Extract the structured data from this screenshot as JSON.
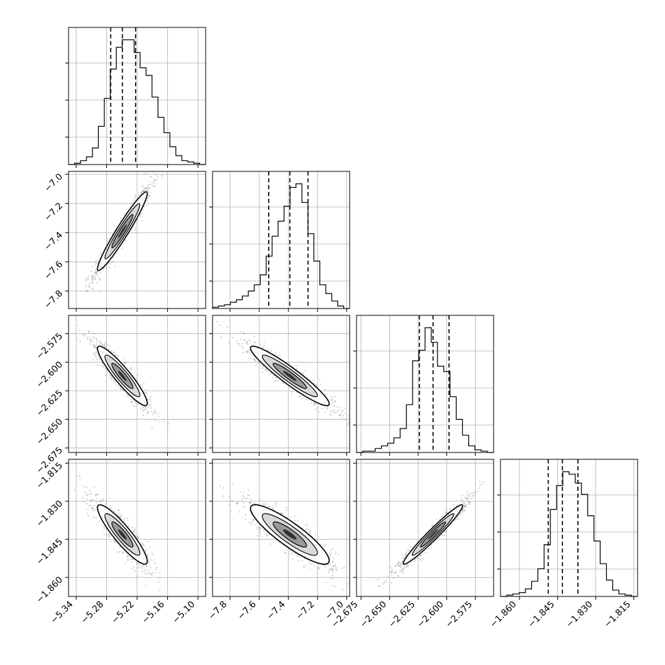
{
  "chart_data": {
    "type": "corner",
    "parameters": [
      {
        "name": "",
        "range": [
          -5.355,
          -5.085
        ],
        "ticks": [
          "-5.34",
          "-5.28",
          "-5.22",
          "-5.16",
          "-5.10"
        ],
        "tick_values": [
          -5.34,
          -5.28,
          -5.22,
          -5.16,
          -5.1
        ],
        "quantiles": [
          -5.272,
          -5.249,
          -5.223
        ]
      },
      {
        "name": "",
        "range": [
          -7.92,
          -6.98
        ],
        "ticks": [
          "-7.8",
          "-7.6",
          "-7.4",
          "-7.2",
          "-7.0"
        ],
        "tick_values": [
          -7.8,
          -7.6,
          -7.4,
          -7.2,
          -7.0
        ],
        "quantiles": [
          -7.535,
          -7.39,
          -7.265
        ]
      },
      {
        "name": "",
        "range": [
          -2.679,
          -2.559
        ],
        "ticks": [
          "-2.675",
          "-2.650",
          "-2.625",
          "-2.600",
          "-2.575"
        ],
        "tick_values": [
          -2.675,
          -2.65,
          -2.625,
          -2.6,
          -2.575
        ],
        "quantiles": [
          -2.624,
          -2.612,
          -2.598
        ]
      },
      {
        "name": "",
        "range": [
          -1.8675,
          -1.8135
        ],
        "ticks": [
          "-1.860",
          "-1.845",
          "-1.830",
          "-1.815"
        ],
        "tick_values": [
          -1.86,
          -1.845,
          -1.83,
          -1.815
        ],
        "quantiles": [
          -1.8487,
          -1.8431,
          -1.837
        ]
      }
    ],
    "histograms": [
      [
        0,
        1,
        3,
        6,
        13,
        30,
        52,
        75,
        92,
        98,
        98,
        88,
        76,
        70,
        53,
        37,
        25,
        14,
        7,
        3,
        2,
        1,
        0
      ],
      [
        1,
        2,
        3,
        5,
        7,
        10,
        14,
        19,
        27,
        42,
        58,
        70,
        82,
        97,
        100,
        85,
        60,
        38,
        19,
        12,
        6,
        2,
        0
      ],
      [
        0,
        1,
        1,
        3,
        5,
        7,
        11,
        18,
        36,
        69,
        77,
        94,
        83,
        65,
        61,
        42,
        25,
        13,
        5,
        2,
        1,
        0
      ],
      [
        0,
        1,
        2,
        3,
        6,
        12,
        22,
        41,
        69,
        88,
        99,
        97,
        90,
        81,
        64,
        44,
        26,
        13,
        5,
        2,
        1,
        0
      ]
    ],
    "correlations": {
      "1-0": 0.96,
      "2-0": -0.92,
      "2-1": -0.94,
      "3-0": -0.9,
      "3-1": -0.88,
      "3-2": 0.97
    },
    "grid": true,
    "colors": {
      "contour": "#000000",
      "points": "#7f7f7f",
      "quantile_line": "#000000"
    }
  }
}
